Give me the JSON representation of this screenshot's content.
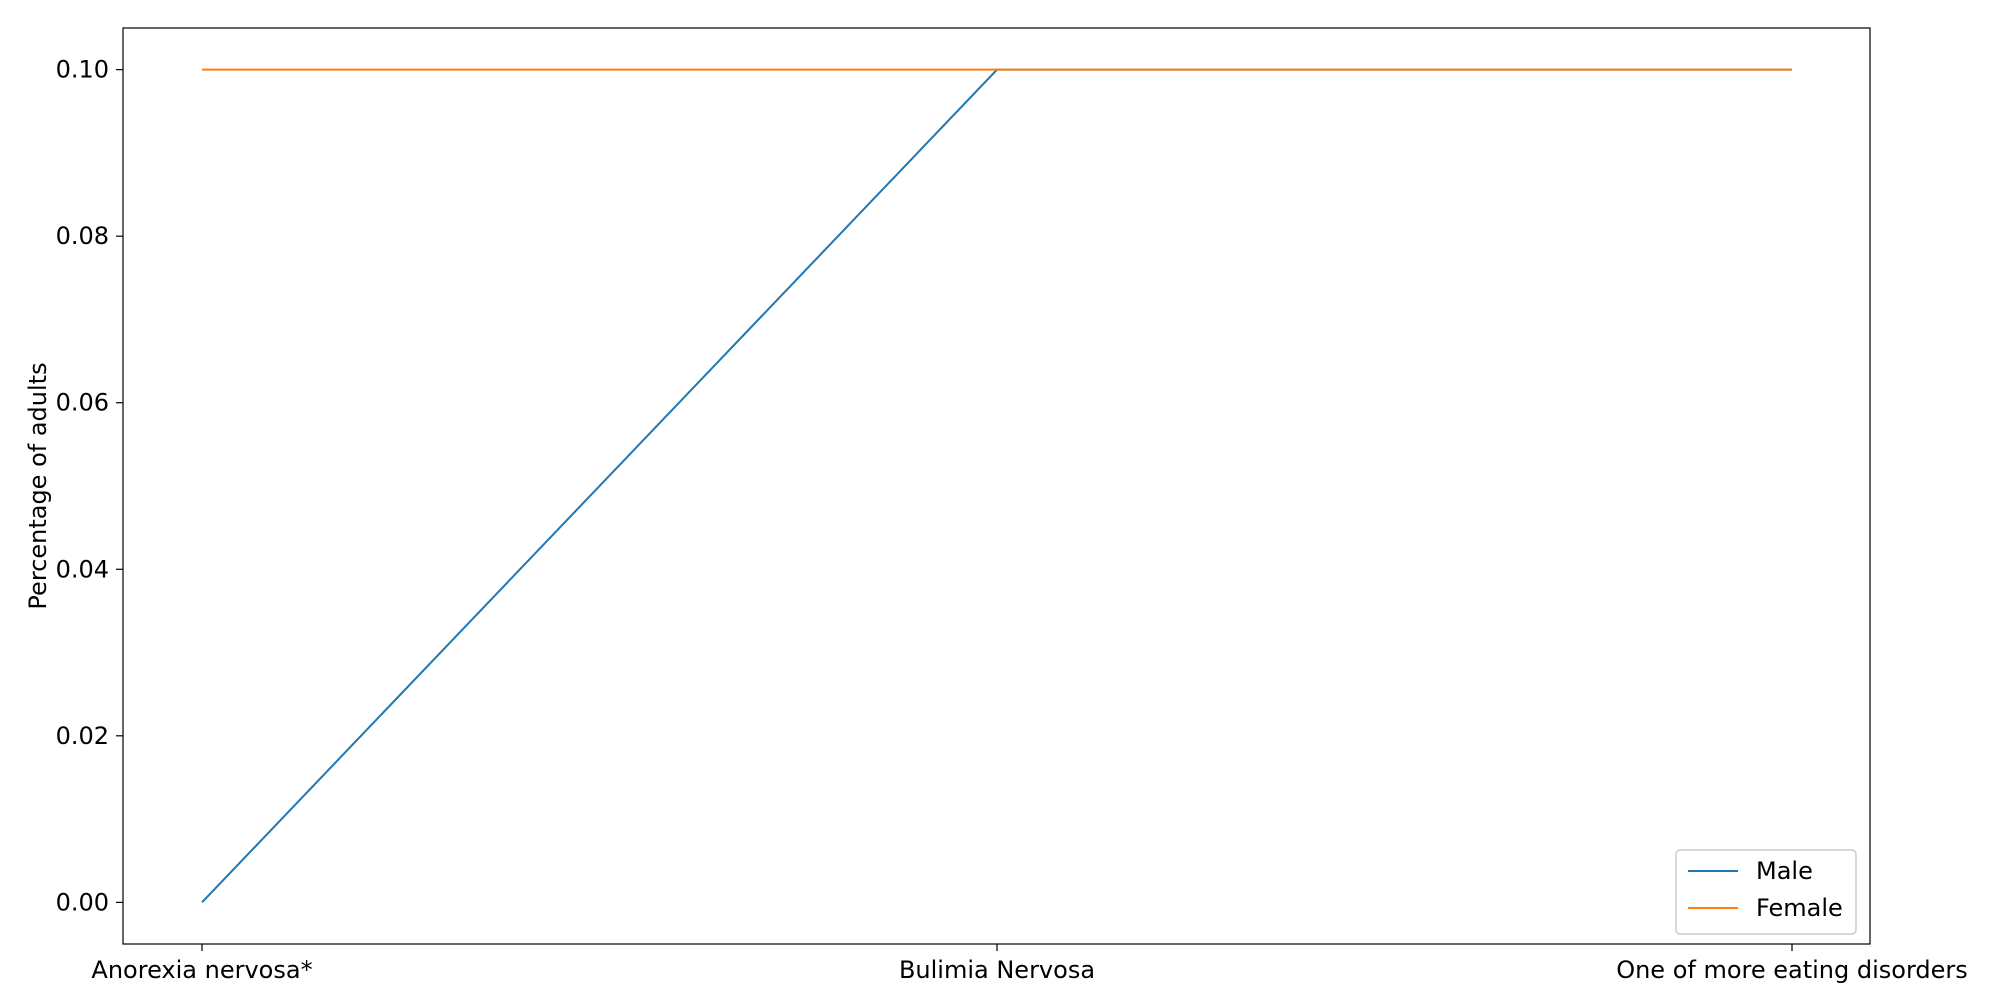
{
  "chart_data": {
    "type": "line",
    "categories": [
      "Anorexia nervosa*",
      "Bulimia Nervosa",
      "One of more eating disorders"
    ],
    "series": [
      {
        "name": "Male",
        "values": [
          0.0,
          0.1,
          0.1
        ],
        "color": "#1f77b4"
      },
      {
        "name": "Female",
        "values": [
          0.1,
          0.1,
          0.1
        ],
        "color": "#ff7f0e"
      }
    ],
    "title": "",
    "xlabel": "",
    "ylabel": "Percentage of adults",
    "ylim": [
      -0.005,
      0.105
    ],
    "yticks": [
      0.0,
      0.02,
      0.04,
      0.06,
      0.08,
      0.1
    ],
    "ytick_labels": [
      "0.00",
      "0.02",
      "0.04",
      "0.06",
      "0.08",
      "0.10"
    ],
    "grid": false,
    "legend": {
      "position": "lower-right"
    }
  }
}
